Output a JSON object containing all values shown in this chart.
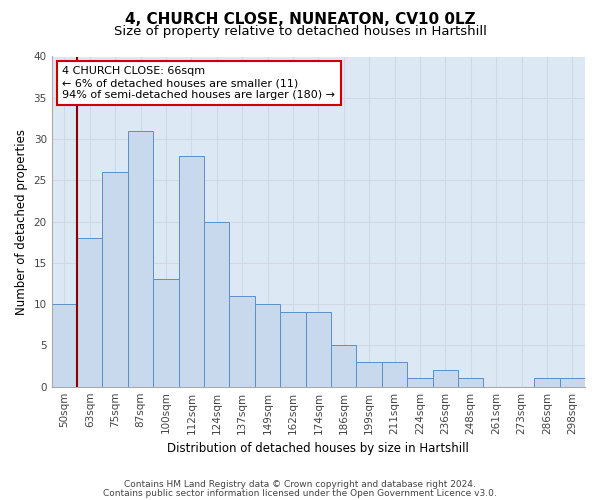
{
  "title": "4, CHURCH CLOSE, NUNEATON, CV10 0LZ",
  "subtitle": "Size of property relative to detached houses in Hartshill",
  "xlabel": "Distribution of detached houses by size in Hartshill",
  "ylabel": "Number of detached properties",
  "categories": [
    "50sqm",
    "63sqm",
    "75sqm",
    "87sqm",
    "100sqm",
    "112sqm",
    "124sqm",
    "137sqm",
    "149sqm",
    "162sqm",
    "174sqm",
    "186sqm",
    "199sqm",
    "211sqm",
    "224sqm",
    "236sqm",
    "248sqm",
    "261sqm",
    "273sqm",
    "286sqm",
    "298sqm"
  ],
  "values": [
    10,
    18,
    26,
    31,
    13,
    28,
    20,
    11,
    10,
    9,
    9,
    5,
    3,
    3,
    1,
    2,
    1,
    0,
    0,
    1,
    1
  ],
  "bar_color": "#c9d9ed",
  "bar_edge_color": "#5b8fc9",
  "grid_color": "#d0d8e4",
  "background_color": "#dde8f5",
  "vline_x": 0.5,
  "vline_color": "#8b0000",
  "annotation_text": "4 CHURCH CLOSE: 66sqm\n← 6% of detached houses are smaller (11)\n94% of semi-detached houses are larger (180) →",
  "annotation_box_color": "#ffffff",
  "annotation_box_edge_color": "#cc0000",
  "ylim": [
    0,
    40
  ],
  "yticks": [
    0,
    5,
    10,
    15,
    20,
    25,
    30,
    35,
    40
  ],
  "footer1": "Contains HM Land Registry data © Crown copyright and database right 2024.",
  "footer2": "Contains public sector information licensed under the Open Government Licence v3.0.",
  "title_fontsize": 11,
  "subtitle_fontsize": 9.5,
  "axis_label_fontsize": 8.5,
  "tick_fontsize": 7.5,
  "annotation_fontsize": 8
}
